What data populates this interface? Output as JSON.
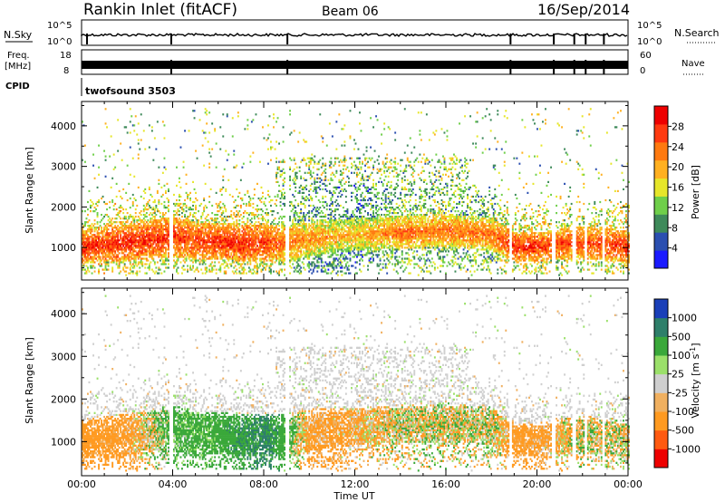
{
  "header": {
    "station": "Rankin Inlet (fitACF)",
    "beam": "Beam 06",
    "date": "16/Sep/2014"
  },
  "noise_panel": {
    "left_label": "N.Sky",
    "right_label": "N.Search",
    "left_ticks": [
      "10^5",
      "10^0"
    ],
    "right_ticks": [
      "10^5",
      "10^0"
    ]
  },
  "freq_panel": {
    "left_label_1": "Freq.",
    "left_label_2": "[MHz]",
    "right_label": "Nave",
    "left_ticks": [
      "18",
      "8"
    ],
    "right_ticks": [
      "60",
      "0"
    ]
  },
  "cpid_panel": {
    "label": "CPID",
    "value": "twofsound 3503"
  },
  "colors": {
    "power_scale": [
      "#1a1aff",
      "#2b4fb0",
      "#3e8a5a",
      "#6fcf4a",
      "#e6e62a",
      "#ffb020",
      "#ff7a10",
      "#ff3a10",
      "#ee0000"
    ],
    "velocity_scale": [
      "#ee0000",
      "#ff5a10",
      "#ff9a20",
      "#f0b060",
      "#cfcfcf",
      "#9be06a",
      "#3aa83a",
      "#2e7f6a",
      "#1a3fb8"
    ]
  },
  "chart_data": [
    {
      "type": "heatmap",
      "quantity": "Power",
      "ylabel": "Slant Range [km]",
      "yticks": [
        1000,
        2000,
        3000,
        4000
      ],
      "ylim": [
        200,
        4600
      ],
      "xlim": [
        0,
        24
      ],
      "colorbar": {
        "label": "Power [dB]",
        "ticks": [
          "28",
          "24",
          "20",
          "16",
          "12",
          "8",
          "4"
        ],
        "range": [
          0,
          32
        ]
      },
      "profile": {
        "hours": [
          0,
          2,
          4,
          5,
          7,
          8,
          9,
          10,
          12,
          14,
          16,
          18,
          19,
          20,
          22,
          24
        ],
        "main_band_center_km": [
          1000,
          1100,
          1250,
          1150,
          1100,
          1100,
          1100,
          1200,
          1300,
          1350,
          1400,
          1300,
          1000,
          1000,
          1100,
          1000
        ],
        "main_band_width_km": [
          800,
          900,
          1000,
          900,
          900,
          900,
          900,
          900,
          800,
          800,
          800,
          800,
          700,
          700,
          800,
          800
        ],
        "main_band_power_db": [
          28,
          28,
          27,
          27,
          28,
          27,
          24,
          22,
          20,
          24,
          24,
          24,
          28,
          28,
          26,
          28
        ]
      }
    },
    {
      "type": "heatmap",
      "quantity": "Velocity",
      "ylabel": "Slant Range [km]",
      "yticks": [
        1000,
        2000,
        3000,
        4000
      ],
      "ylim": [
        200,
        4600
      ],
      "xlim": [
        0,
        24
      ],
      "xlabel": "Time UT",
      "xticks": [
        "00:00",
        "04:00",
        "08:00",
        "12:00",
        "16:00",
        "20:00",
        "00:00"
      ],
      "colorbar": {
        "label": "Velocity [m s",
        "label_superscript": "-1",
        "label_close": "]",
        "ticks": [
          "1000",
          "500",
          "100",
          "25",
          "-25",
          "-100",
          "-500",
          "-1000"
        ]
      },
      "profile": {
        "hours": [
          0,
          2,
          4,
          6,
          8,
          10,
          12,
          14,
          16,
          18,
          19,
          20,
          22,
          24
        ],
        "dominant_velocity_ms": [
          -300,
          -200,
          200,
          250,
          600,
          -200,
          -150,
          0,
          0,
          0,
          -250,
          -200,
          0,
          0
        ]
      }
    }
  ]
}
